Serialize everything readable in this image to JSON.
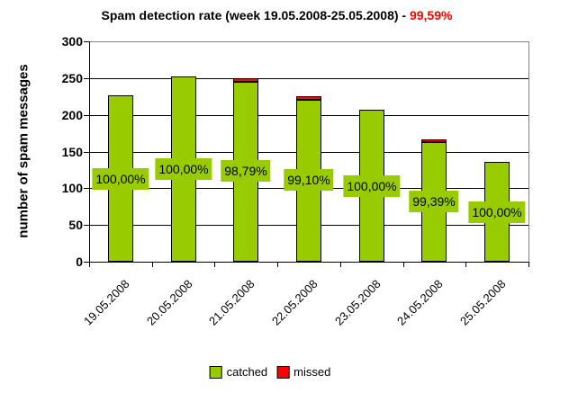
{
  "title": {
    "text": "Spam detection rate (week 19.05.2008-25.05.2008) - ",
    "highlight": "99,59%",
    "highlight_color": "#ff0000"
  },
  "chart_data": {
    "type": "bar",
    "stacked": true,
    "title": "Spam detection rate (week 19.05.2008-25.05.2008) - 99,59%",
    "categories": [
      "19.05.2008",
      "20.05.2008",
      "21.05.2008",
      "22.05.2008",
      "23.05.2008",
      "24.05.2008",
      "25.05.2008"
    ],
    "series": [
      {
        "name": "catched",
        "color": "#99cc00",
        "values": [
          227,
          252,
          245,
          220,
          207,
          163,
          136
        ]
      },
      {
        "name": "missed",
        "color": "#ff0000",
        "values": [
          0,
          0,
          3,
          2,
          0,
          1,
          0
        ]
      }
    ],
    "bar_labels": [
      "100,00%",
      "100,00%",
      "98,79%",
      "99,10%",
      "100,00%",
      "99,39%",
      "100,00%"
    ],
    "bar_label_bg": "#99cc00",
    "xlabel": "",
    "ylabel": "number of spam messages",
    "ylim": [
      0,
      300
    ],
    "yticks": [
      0,
      50,
      100,
      150,
      200,
      250,
      300
    ],
    "grid": true,
    "gridline_color": "#000000",
    "plot_border_color": "#808080",
    "legend_position": "bottom"
  },
  "legend": {
    "items": [
      {
        "label": "catched",
        "color": "#99cc00"
      },
      {
        "label": "missed",
        "color": "#ff0000"
      }
    ]
  }
}
